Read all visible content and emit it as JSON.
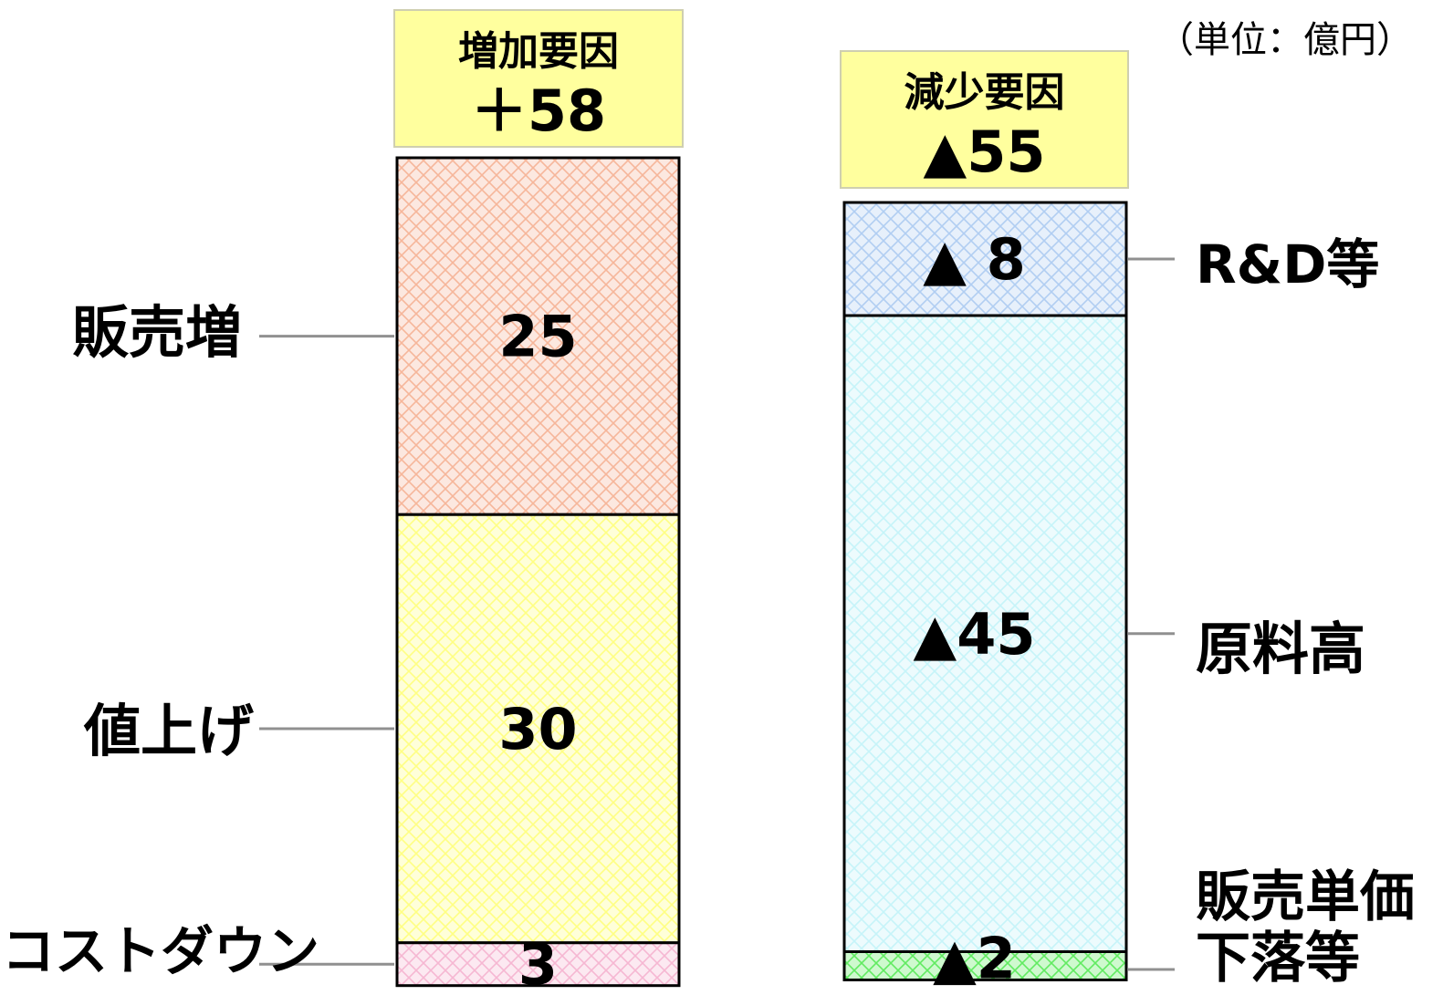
{
  "unit_label": "（単位：億円）",
  "chart_data": [
    {
      "type": "bar",
      "stacked": true,
      "header": {
        "title": "増加要因",
        "total_label": "＋58"
      },
      "total": 58,
      "segments": [
        {
          "category": "販売増",
          "value": 25,
          "value_label": "25",
          "color": "#f4a582"
        },
        {
          "category": "値上げ",
          "value": 30,
          "value_label": "30",
          "color": "#ffff66"
        },
        {
          "category": "コストダウン",
          "value": 3,
          "value_label": "3",
          "color": "#f4a6c8"
        }
      ]
    },
    {
      "type": "bar",
      "stacked": true,
      "header": {
        "title": "減少要因",
        "total_label": "▲55"
      },
      "total": -55,
      "segments": [
        {
          "category": "R&D等",
          "value": -8,
          "value_label": "▲ 8",
          "color": "#9ec3ef"
        },
        {
          "category": "原料高",
          "value": -45,
          "value_label": "▲45",
          "color": "#b9f1f8"
        },
        {
          "category": "販売単価下落等",
          "value": -2,
          "value_label": "▲2",
          "color": "#3ce63c"
        }
      ]
    }
  ]
}
